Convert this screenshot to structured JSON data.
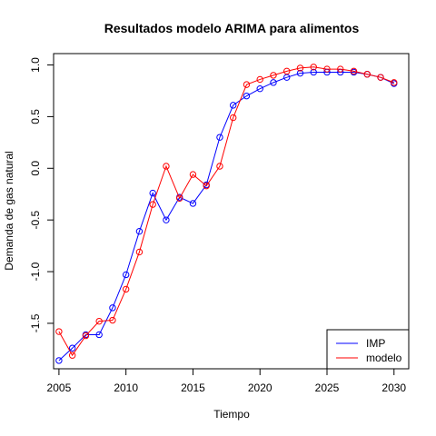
{
  "chart_data": {
    "type": "line",
    "title": "Resultados modelo ARIMA para alimentos",
    "xlabel": "Tiempo",
    "ylabel": "Demanda de gas natural",
    "xlim": [
      2004.6,
      2031.1
    ],
    "ylim": [
      -1.94,
      1.11
    ],
    "x_ticks": [
      2005,
      2010,
      2015,
      2020,
      2025,
      2030
    ],
    "y_ticks": [
      -1.5,
      -1.0,
      -0.5,
      0.0,
      0.5,
      1.0
    ],
    "x_tick_labels": [
      "2005",
      "2010",
      "2015",
      "2020",
      "2025",
      "2030"
    ],
    "y_tick_labels": [
      "-1.5",
      "-1.0",
      "-0.5",
      "0.0",
      "0.5",
      "1.0"
    ],
    "grid": false,
    "legend_position": "bottom-right",
    "x": [
      2005,
      2006,
      2007,
      2008,
      2009,
      2010,
      2011,
      2012,
      2013,
      2014,
      2015,
      2016,
      2017,
      2018,
      2019,
      2020,
      2021,
      2022,
      2023,
      2024,
      2025,
      2026,
      2027,
      2028,
      2029,
      2030
    ],
    "series": [
      {
        "name": "IMP",
        "color": "#0000ff",
        "values": [
          -1.86,
          -1.74,
          -1.61,
          -1.61,
          -1.35,
          -1.03,
          -0.61,
          -0.24,
          -0.5,
          -0.28,
          -0.34,
          -0.16,
          0.3,
          0.61,
          0.7,
          0.77,
          0.83,
          0.88,
          0.92,
          0.93,
          0.93,
          0.93,
          0.93,
          0.91,
          0.88,
          0.82
        ]
      },
      {
        "name": "modelo",
        "color": "#ff0000",
        "values": [
          -1.58,
          -1.81,
          -1.62,
          -1.48,
          -1.47,
          -1.17,
          -0.81,
          -0.35,
          0.02,
          -0.29,
          -0.06,
          -0.17,
          0.02,
          0.49,
          0.81,
          0.86,
          0.9,
          0.94,
          0.97,
          0.98,
          0.96,
          0.96,
          0.94,
          0.91,
          0.88,
          0.83
        ]
      }
    ]
  }
}
